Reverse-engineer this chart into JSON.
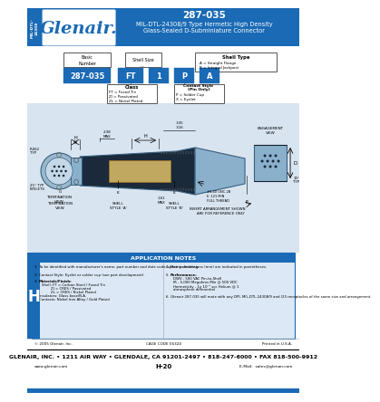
{
  "title_number": "287-035",
  "title_line1": "MIL-DTL-24308/9 Type Hermetic High Density",
  "title_line2": "Glass-Sealed D-Subminiature Connector",
  "company": "Glenair.",
  "header_bg": "#1a6ab5",
  "side_label": "MIL-DTL-\n24308",
  "part_number_label": "Basic\nNumber",
  "shell_size_label": "Shell Size",
  "shell_type_label": "Shell Type",
  "shell_type_options": [
    "A = Straight Flange",
    "B = Integral Jackpost"
  ],
  "pn_boxes": [
    "287-035",
    "FT",
    "1",
    "P",
    "A"
  ],
  "class_label": "Class",
  "class_options": [
    "FT = Fused Tin",
    "ZI = Passivated",
    "ZL = Nickel Plated"
  ],
  "contact_style_label": "Contact Style\n(Pin Only)",
  "contact_style_options": [
    "P = Solder Cup",
    "X = Eyelet"
  ],
  "app_notes_title": "APPLICATION NOTES",
  "app_note_1": "To be identified with manufacturer's name, part number and date code, space permitting.",
  "app_note_2": "Contact Style: Eyelet or solder cup (see part development).",
  "app_note_3a": "Materials/Finish:",
  "app_note_3b": "Shell: FT = Carbon Steel / Fused Tin",
  "app_note_3c": "        ZI = CRES / Passivated",
  "app_note_3d": "        ZL = CRES / Nickel Plated",
  "app_note_3e": "Insulators: Glass base/N.A.",
  "app_note_3f": "Contacts: Nickel Iron Alloy / Gold Plated",
  "app_note_4": "Metric dimensions (mm) are indicated in parentheses.",
  "app_note_5a": "Performance:",
  "app_note_5b": "DWV - 500 VAC Pin-to-Shell",
  "app_note_5c": "IR - 5,000 Megohms Min @ 500 VDC",
  "app_note_5d": "Hermeticity - 1x 10⁻⁸ scc Helium @ 1",
  "app_note_5e": "atmosphere differential",
  "app_note_6": "Glenair 287-035 will mate with any DPI, MIL-DTL-24308/9 and /23 receptacles of the same size and arrangement.",
  "footer_copy": "© 2005 Glenair, Inc.",
  "footer_cage": "CAGE CODE 06324",
  "footer_printed": "Printed in U.S.A.",
  "footer_address": "GLENAIR, INC. • 1211 AIR WAY • GLENDALE, CA 91201-2497 • 818-247-6000 • FAX 818-500-9912",
  "footer_web": "www.glenair.com",
  "footer_page": "H-20",
  "footer_email": "E-Mail:  sales@glenair.com",
  "note_h_label": "H",
  "blue": "#1a6ab5",
  "light_blue_bg": "#dce8f5",
  "draw_bg": "#d8e4f0"
}
